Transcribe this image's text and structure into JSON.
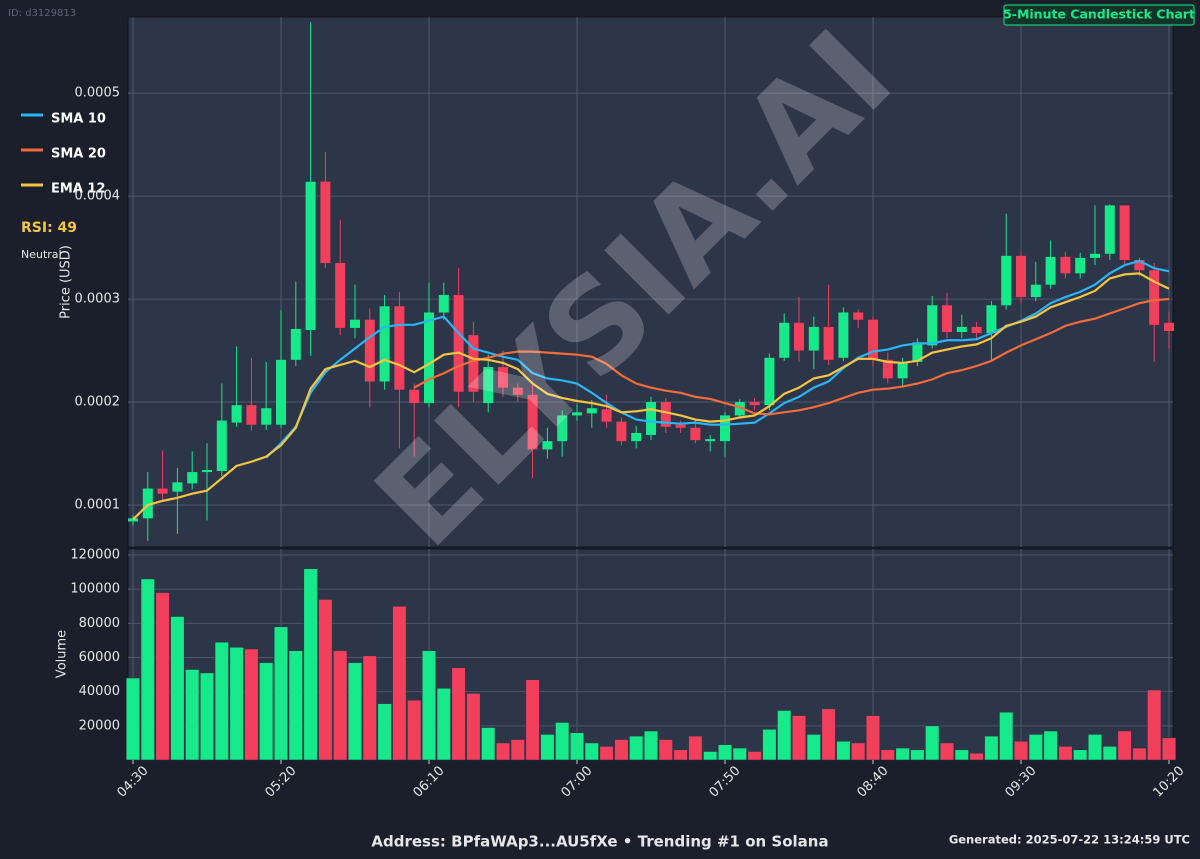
{
  "id_label": "ID: d3129813",
  "watermark": "ELYSIA.AI",
  "footer": "Address: BPfaWAp3...AU5fXe • Trending #1 on Solana",
  "generated": "Generated: 2025-07-22 13:24:59 UTC",
  "indicator": {
    "rsi": "RSI: 49",
    "status": "Neutral"
  },
  "chart_data": [
    {
      "type": "candlestick",
      "title": "5-Minute Candlestick Chart",
      "ylabel": "Price (USD)",
      "up_color": "#16e98a",
      "down_color": "#f2405c",
      "grid": true,
      "categories": [
        "04:30",
        null,
        null,
        null,
        null,
        null,
        null,
        null,
        null,
        null,
        "05:20",
        null,
        null,
        null,
        null,
        null,
        null,
        null,
        null,
        null,
        "06:10",
        null,
        null,
        null,
        null,
        null,
        null,
        null,
        null,
        null,
        "07:00",
        null,
        null,
        null,
        null,
        null,
        null,
        null,
        null,
        null,
        "07:50",
        null,
        null,
        null,
        null,
        null,
        null,
        null,
        null,
        null,
        "08:40",
        null,
        null,
        null,
        null,
        null,
        null,
        null,
        null,
        null,
        "09:30",
        null,
        null,
        null,
        null,
        null,
        null,
        null,
        null,
        null,
        "10:20"
      ],
      "open": [
        8.4e-05,
        8.7e-05,
        0.000116,
        0.000113,
        0.000121,
        0.000132,
        0.000133,
        0.00018,
        0.000197,
        0.000178,
        0.000178,
        0.000241,
        0.00027,
        0.000414,
        0.000335,
        0.000272,
        0.00028,
        0.00022,
        0.000293,
        0.000212,
        0.000199,
        0.000287,
        0.000304,
        0.000265,
        0.000199,
        0.000234,
        0.000214,
        0.000207,
        0.000154,
        0.000162,
        0.000187,
        0.000189,
        0.000193,
        0.000181,
        0.000162,
        0.000168,
        0.0002,
        0.000178,
        0.000175,
        0.000162,
        0.000162,
        0.000187,
        0.0002,
        0.000197,
        0.000243,
        0.000277,
        0.00025,
        0.000273,
        0.000243,
        0.000287,
        0.00028,
        0.000241,
        0.000223,
        0.000239,
        0.000255,
        0.000294,
        0.000268,
        0.000273,
        0.000267,
        0.000294,
        0.000342,
        0.000302,
        0.000314,
        0.000341,
        0.000325,
        0.00034,
        0.000344,
        0.000391,
        0.000338,
        0.000328,
        0.000277
      ],
      "high": [
        9e-05,
        0.000132,
        0.000153,
        0.000136,
        0.000152,
        0.00016,
        0.000218,
        0.000254,
        0.000243,
        0.000239,
        0.000289,
        0.000317,
        0.000569,
        0.000443,
        0.000377,
        0.000314,
        0.000291,
        0.000304,
        0.000307,
        0.000218,
        0.000316,
        0.000316,
        0.00033,
        0.000278,
        0.000246,
        0.00025,
        0.000218,
        0.00022,
        0.000175,
        0.000192,
        0.000198,
        0.000202,
        0.000207,
        0.000185,
        0.000177,
        0.000205,
        0.000204,
        0.000182,
        0.000182,
        0.000168,
        0.00019,
        0.000203,
        0.000204,
        0.000247,
        0.000286,
        0.000302,
        0.000283,
        0.000314,
        0.000292,
        0.00029,
        0.000283,
        0.000248,
        0.000243,
        0.000262,
        0.000303,
        0.000306,
        0.000285,
        0.000278,
        0.000298,
        0.000383,
        0.000345,
        0.000336,
        0.000357,
        0.000346,
        0.000345,
        0.000391,
        0.000392,
        0.000391,
        0.00034,
        0.000335,
        0.000288
      ],
      "low": [
        8e-05,
        6.5e-05,
        0.000105,
        7.2e-05,
        0.000115,
        8.5e-05,
        0.000128,
        0.000176,
        0.000172,
        0.000173,
        0.000175,
        0.000235,
        0.000245,
        0.00033,
        0.000265,
        0.000262,
        0.000195,
        0.000212,
        0.000155,
        0.000147,
        0.000195,
        0.00028,
        0.000195,
        0.0002,
        0.00019,
        0.000205,
        0.0002,
        0.000126,
        0.000145,
        0.000147,
        0.000182,
        0.000175,
        0.000175,
        0.000158,
        0.000155,
        0.000163,
        0.00017,
        0.00017,
        0.00016,
        0.000152,
        0.000147,
        0.000185,
        0.000192,
        0.000192,
        0.00024,
        0.000239,
        0.000232,
        0.000236,
        0.00024,
        0.000272,
        0.000235,
        0.000218,
        0.000214,
        0.000235,
        0.000252,
        0.000262,
        0.000262,
        0.000262,
        0.000241,
        0.00029,
        0.000295,
        0.000298,
        0.00031,
        0.00032,
        0.00032,
        0.000333,
        0.000338,
        0.000332,
        0.000322,
        0.000239,
        0.000252
      ],
      "close": [
        8.7e-05,
        0.000116,
        0.000111,
        0.000122,
        0.000132,
        0.000134,
        0.000182,
        0.000197,
        0.000178,
        0.000194,
        0.000241,
        0.000271,
        0.000414,
        0.000335,
        0.000272,
        0.00028,
        0.00022,
        0.000293,
        0.000212,
        0.000199,
        0.000287,
        0.000304,
        0.00021,
        0.00021,
        0.000234,
        0.000214,
        0.000207,
        0.000154,
        0.000162,
        0.000187,
        0.00019,
        0.000194,
        0.000181,
        0.000162,
        0.00017,
        0.0002,
        0.000176,
        0.000175,
        0.000163,
        0.000164,
        0.000187,
        0.0002,
        0.000197,
        0.000243,
        0.000277,
        0.00025,
        0.000273,
        0.000241,
        0.000287,
        0.00028,
        0.000241,
        0.000223,
        0.000239,
        0.000258,
        0.000294,
        0.000268,
        0.000273,
        0.000267,
        0.000294,
        0.000342,
        0.000302,
        0.000314,
        0.000341,
        0.000325,
        0.00034,
        0.000344,
        0.000391,
        0.000338,
        0.000328,
        0.000275,
        0.000269
      ],
      "series": [
        {
          "name": "SMA 10",
          "color": "#29b6f6",
          "values": [
            null,
            null,
            null,
            null,
            null,
            null,
            null,
            null,
            null,
            0.000146,
            0.00016,
            0.000176,
            0.000209,
            0.000229,
            0.000241,
            0.000252,
            0.000263,
            0.000273,
            0.000275,
            0.000275,
            0.000279,
            0.000283,
            0.000267,
            0.000252,
            0.000248,
            0.000244,
            0.000241,
            0.000228,
            0.000223,
            0.000221,
            0.000218,
            0.000209,
            0.000199,
            0.00019,
            0.000183,
            0.000181,
            0.00018,
            0.000179,
            0.00018,
            0.000178,
            0.000178,
            0.000179,
            0.00018,
            0.000189,
            0.000199,
            0.000205,
            0.000214,
            0.00022,
            0.000233,
            0.000243,
            0.000249,
            0.000251,
            0.000255,
            0.000257,
            0.000257,
            0.00026,
            0.00026,
            0.000261,
            0.000267,
            0.000273,
            0.000279,
            0.000286,
            0.000296,
            0.000302,
            0.000307,
            0.000314,
            0.000325,
            0.000333,
            0.000337,
            0.00033,
            0.000327
          ]
        },
        {
          "name": "SMA 20",
          "color": "#f26b3a",
          "values": [
            null,
            null,
            null,
            null,
            null,
            null,
            null,
            null,
            null,
            null,
            null,
            null,
            null,
            null,
            null,
            null,
            null,
            null,
            null,
            0.000214,
            0.000222,
            0.000228,
            0.000235,
            0.00024,
            0.000243,
            0.000247,
            0.000249,
            0.000249,
            0.000248,
            0.000247,
            0.000246,
            0.000244,
            0.000237,
            0.000226,
            0.000218,
            0.000214,
            0.000211,
            0.000209,
            0.000205,
            0.000203,
            0.000199,
            0.000195,
            0.000189,
            0.000188,
            0.00019,
            0.000192,
            0.000195,
            0.000199,
            0.000204,
            0.000209,
            0.000212,
            0.000213,
            0.000215,
            0.000218,
            0.000222,
            0.000228,
            0.000231,
            0.000235,
            0.00024,
            0.000248,
            0.000255,
            0.000261,
            0.000267,
            0.000274,
            0.000278,
            0.000281,
            0.000286,
            0.000291,
            0.000296,
            0.000299,
            0.0003
          ]
        },
        {
          "name": "EMA 12",
          "color": "#f5c542",
          "values": [
            8.6e-05,
            0.0001,
            0.000104,
            0.000107,
            0.000111,
            0.000114,
            0.000126,
            0.000138,
            0.000142,
            0.000147,
            0.000158,
            0.000175,
            0.000213,
            0.000232,
            0.000236,
            0.00024,
            0.000234,
            0.000241,
            0.000236,
            0.000229,
            0.000237,
            0.000246,
            0.000248,
            0.000242,
            0.000241,
            0.000238,
            0.000232,
            0.000218,
            0.000208,
            0.000204,
            0.000201,
            0.000199,
            0.000196,
            0.00019,
            0.000191,
            0.000193,
            0.00019,
            0.000187,
            0.000183,
            0.000181,
            0.000182,
            0.000185,
            0.000187,
            0.000196,
            0.000208,
            0.000214,
            0.000223,
            0.000226,
            0.000234,
            0.000242,
            0.000242,
            0.000239,
            0.000238,
            0.00024,
            0.000248,
            0.000251,
            0.000254,
            0.000256,
            0.000262,
            0.000274,
            0.000278,
            0.000283,
            0.000292,
            0.000297,
            0.000302,
            0.000308,
            0.00032,
            0.000324,
            0.000325,
            0.000317,
            0.00031
          ]
        }
      ],
      "ylim": [
        5.92e-05,
        0.000574
      ],
      "yticks": [
        0.0001,
        0.0002,
        0.0003,
        0.0004,
        0.0005
      ]
    },
    {
      "type": "bar",
      "ylabel": "Volume",
      "grid": true,
      "values": [
        48000,
        106000,
        98000,
        84000,
        53000,
        51000,
        69000,
        66000,
        65000,
        57000,
        78000,
        64000,
        112000,
        94000,
        64000,
        57000,
        61000,
        33000,
        90000,
        35000,
        64000,
        42000,
        54000,
        39000,
        19000,
        10000,
        12000,
        47000,
        15000,
        22000,
        16000,
        10000,
        8000,
        12000,
        14000,
        17000,
        12000,
        6000,
        14000,
        5000,
        9000,
        7000,
        5000,
        18000,
        29000,
        26000,
        15000,
        30000,
        11000,
        10000,
        26000,
        6000,
        7000,
        6000,
        20000,
        10000,
        6000,
        4000,
        14000,
        28000,
        11000,
        15000,
        17000,
        8000,
        6000,
        15000,
        8000,
        17000,
        7000,
        41000,
        13000
      ],
      "ylim": [
        0,
        123500
      ],
      "yticks": [
        20000,
        40000,
        60000,
        80000,
        100000,
        120000
      ]
    }
  ]
}
